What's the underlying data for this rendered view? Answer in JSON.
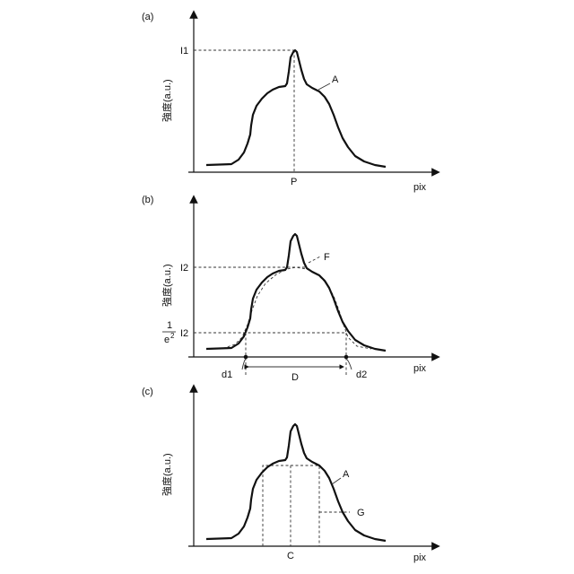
{
  "panels": {
    "a": {
      "tag": "(a)",
      "ylabel": "強度(a.u.)",
      "xlabel": "pix",
      "i_label": "I1",
      "p_label": "P",
      "curve_label": "A"
    },
    "b": {
      "tag": "(b)",
      "ylabel": "強度(a.u.)",
      "xlabel": "pix",
      "i2_top": "I2",
      "frac_num": "1",
      "frac_den": "e",
      "frac_exp": "2",
      "i2_bottom": "I2",
      "fit_label": "F",
      "d1": "d1",
      "d2": "d2",
      "D": "D"
    },
    "c": {
      "tag": "(c)",
      "ylabel": "強度(a.u.)",
      "xlabel": "pix",
      "curve_label": "A",
      "g_label": "G",
      "c_label": "C"
    }
  }
}
